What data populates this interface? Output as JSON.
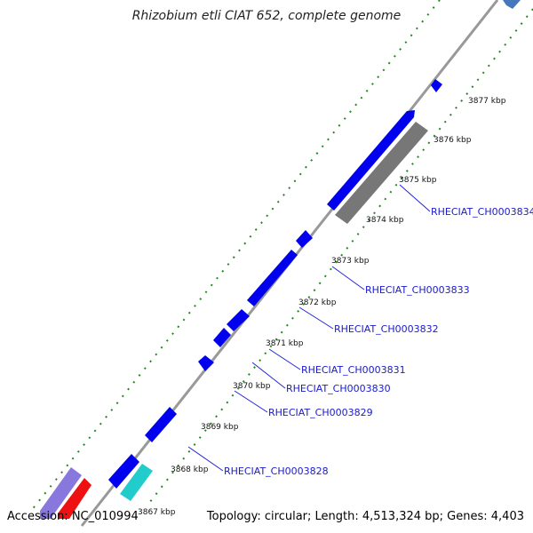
{
  "title": "Rhizobium etli CIAT 652, complete genome",
  "footer": {
    "accession": "Accession: NC_010994",
    "summary": "Topology: circular; Length: 4,513,324 bp; Genes: 4,403"
  },
  "kbp_marks": [
    {
      "label": "3867 kbp"
    },
    {
      "label": "3868 kbp"
    },
    {
      "label": "3869 kbp"
    },
    {
      "label": "3870 kbp"
    },
    {
      "label": "3871 kbp"
    },
    {
      "label": "3872 kbp"
    },
    {
      "label": "3873 kbp"
    },
    {
      "label": "3874 kbp"
    },
    {
      "label": "3875 kbp"
    },
    {
      "label": "3876 kbp"
    },
    {
      "label": "3877 kbp"
    }
  ],
  "genes": [
    {
      "locus": "RHECIAT_CH0003828"
    },
    {
      "locus": "RHECIAT_CH0003829"
    },
    {
      "locus": "RHECIAT_CH0003830"
    },
    {
      "locus": "RHECIAT_CH0003831"
    },
    {
      "locus": "RHECIAT_CH0003832"
    },
    {
      "locus": "RHECIAT_CH0003833"
    },
    {
      "locus": "RHECIAT_CH0003834"
    }
  ],
  "colors": {
    "backbone": "#999999",
    "cds": "#0000ee",
    "rna": "#777777",
    "feature_cyan": "#22cccc",
    "feature_purple": "#8877dd",
    "feature_red": "#ee1111",
    "feature_steelblue": "#4477bb",
    "tick": "#228822",
    "label_line": "#2222dd"
  }
}
